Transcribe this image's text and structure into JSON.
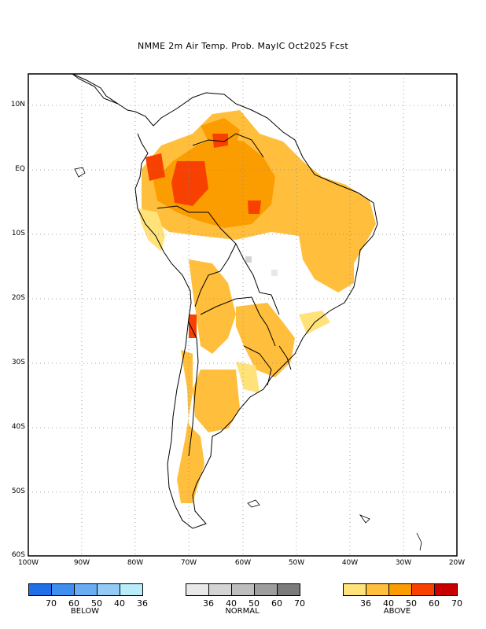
{
  "title": "NMME 2m Air Temp. Prob. MayIC  Oct2025 Fcst",
  "lat_labels": [
    "10N",
    "EQ",
    "10S",
    "20S",
    "30S",
    "40S",
    "50S",
    "60S"
  ],
  "lon_labels": [
    "100W",
    "90W",
    "80W",
    "70W",
    "60W",
    "50W",
    "40W",
    "30W",
    "20W"
  ],
  "legends": {
    "below": {
      "name": "BELOW",
      "ticks": [
        "70",
        "60",
        "50",
        "40",
        "36"
      ],
      "colors": [
        "#1f6fe8",
        "#3e8ff0",
        "#6aadf5",
        "#93cbf7",
        "#b8ecf9"
      ]
    },
    "normal": {
      "name": "NORMAL",
      "ticks": [
        "36",
        "40",
        "50",
        "60",
        "70"
      ],
      "colors": [
        "#e8e8e8",
        "#d4d4d4",
        "#bdbdbd",
        "#9e9e9e",
        "#7b7b7b"
      ]
    },
    "above": {
      "name": "ABOVE",
      "ticks": [
        "36",
        "40",
        "50",
        "60",
        "70"
      ],
      "colors": [
        "#ffe37a",
        "#ffbf3c",
        "#fb9c00",
        "#f84100",
        "#c90000"
      ]
    }
  }
}
